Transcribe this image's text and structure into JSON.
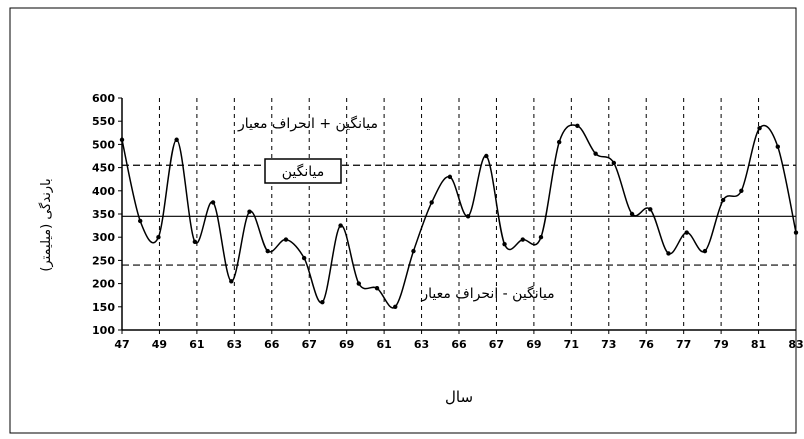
{
  "chart_data": {
    "type": "line",
    "xlabel": "سال",
    "ylabel": "بارندگی (میلیمتر)",
    "ylim": [
      100,
      600
    ],
    "yticks": [
      100,
      150,
      200,
      250,
      300,
      350,
      400,
      450,
      500,
      550,
      600
    ],
    "xticks": [
      "47",
      "49",
      "61",
      "63",
      "66",
      "67",
      "69",
      "61",
      "63",
      "66",
      "67",
      "69",
      "71",
      "73",
      "76",
      "77",
      "79",
      "81",
      "83"
    ],
    "grid": "vertical dashed at each tick",
    "series": [
      {
        "values": [
          510,
          335,
          300,
          510,
          290,
          375,
          205,
          355,
          270,
          295,
          255,
          160,
          325,
          200,
          190,
          150,
          270,
          375,
          430,
          345,
          475,
          285,
          295,
          300,
          505,
          540,
          480,
          460,
          350,
          360,
          265,
          310,
          270,
          380,
          400,
          535,
          495,
          310
        ]
      }
    ],
    "reference_lines": [
      {
        "label": "میانگین",
        "value": 345,
        "style": "solid"
      },
      {
        "label": "میانگین + انحراف معیار",
        "value": 455,
        "style": "dashed"
      },
      {
        "label": "میانگین - انحراف معیار",
        "value": 240,
        "style": "dashed"
      }
    ]
  }
}
